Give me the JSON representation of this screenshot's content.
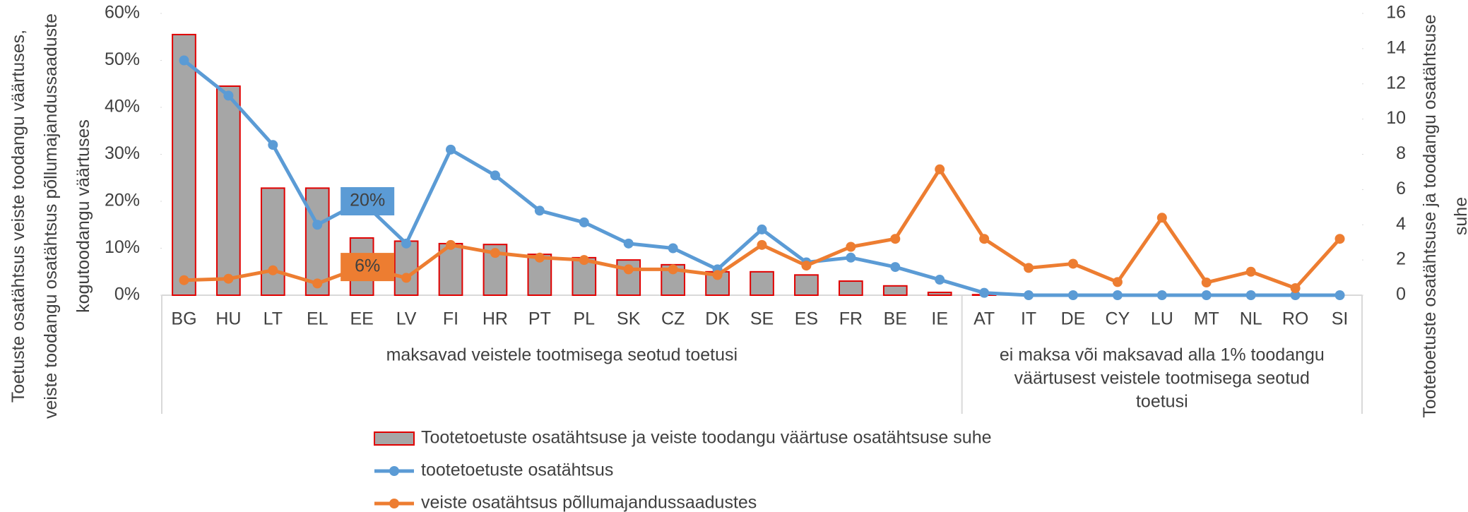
{
  "chart_data": {
    "type": "combo",
    "categories": [
      "BG",
      "HU",
      "LT",
      "EL",
      "EE",
      "LV",
      "FI",
      "HR",
      "PT",
      "PL",
      "SK",
      "CZ",
      "DK",
      "SE",
      "ES",
      "FR",
      "BE",
      "IE",
      "AT",
      "IT",
      "DE",
      "CY",
      "LU",
      "MT",
      "NL",
      "RO",
      "SI"
    ],
    "groups": [
      {
        "lines": [
          "maksavad veistele tootmisega seotud toetusi"
        ],
        "first": "BG",
        "last": "IE"
      },
      {
        "lines": [
          "ei maksa või maksavad alla 1% toodangu",
          "väärtusest veistele tootmisega seotud",
          "toetusi"
        ],
        "first": "AT",
        "last": "SI"
      }
    ],
    "y_label": [
      "Toetuste osatähtsus veiste toodangu väärtuses,",
      "veiste toodangu osatähtsus põllumajandussaaduste",
      "kogutoodangu väärtuses"
    ],
    "y2_label": [
      "Tootetoetuste osatähtsuse ja toodangu osatähtsuse",
      "suhe"
    ],
    "ylim": [
      0,
      60
    ],
    "yticks": [
      {
        "value": 0,
        "label": "0%"
      },
      {
        "value": 10,
        "label": "10%"
      },
      {
        "value": 20,
        "label": "20%"
      },
      {
        "value": 30,
        "label": "30%"
      },
      {
        "value": 40,
        "label": "40%"
      },
      {
        "value": 50,
        "label": "50%"
      },
      {
        "value": 60,
        "label": "60%"
      }
    ],
    "y2lim": [
      0,
      16
    ],
    "y2ticks": [
      0,
      2,
      4,
      6,
      8,
      10,
      12,
      14,
      16
    ],
    "series": [
      {
        "name": "Tootetoetuste osatähtsuse ja veiste toodangu väärtuse osatähtsuse suhe",
        "type": "bar",
        "axis": "y2",
        "color": "#a6a6a6",
        "edge_color": "#e00000",
        "values": [
          14.8,
          11.87,
          6.08,
          6.08,
          3.25,
          3.07,
          2.93,
          2.88,
          2.32,
          2.13,
          2.0,
          1.73,
          1.33,
          1.33,
          1.15,
          0.8,
          0.53,
          0.16,
          0.03,
          0,
          0,
          0,
          0,
          0,
          0,
          0,
          0
        ]
      },
      {
        "name": "tootetoetuste osatähtsus",
        "type": "line",
        "axis": "y",
        "color": "#5b9bd5",
        "values": [
          50,
          42.5,
          32,
          15,
          20,
          11,
          31,
          25.5,
          18,
          15.5,
          11,
          10,
          5.5,
          14,
          7,
          8,
          6,
          3.3,
          0.5,
          0,
          0,
          0,
          0,
          0,
          0,
          0,
          0
        ],
        "value_labels": [
          null,
          null,
          null,
          null,
          "20%",
          null,
          null,
          null,
          null,
          null,
          null,
          null,
          null,
          null,
          null,
          null,
          null,
          null,
          null,
          null,
          null,
          null,
          null,
          null,
          null,
          null,
          null
        ]
      },
      {
        "name": "veiste osatähtsus põllumajandussaadustes",
        "type": "line",
        "axis": "y",
        "color": "#ed7d31",
        "values": [
          3.2,
          3.5,
          5.3,
          2.5,
          6,
          3.7,
          10.7,
          9,
          8,
          7.5,
          5.5,
          5.5,
          4.3,
          10.7,
          6.3,
          10.3,
          12,
          26.8,
          12,
          5.8,
          6.7,
          2.8,
          16.5,
          2.7,
          5,
          1.5,
          12
        ],
        "value_labels": [
          null,
          null,
          null,
          null,
          "6%",
          null,
          null,
          null,
          null,
          null,
          null,
          null,
          null,
          null,
          null,
          null,
          null,
          null,
          null,
          null,
          null,
          null,
          null,
          null,
          null,
          null,
          null
        ]
      }
    ]
  }
}
